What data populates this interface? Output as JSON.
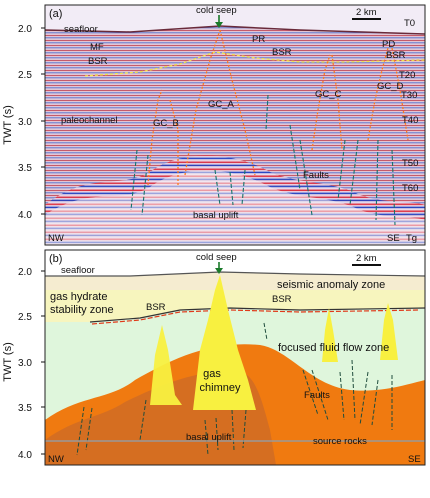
{
  "panel_a": {
    "label": "(a)",
    "top_label": "cold seep",
    "scale": "2 km",
    "labels": {
      "seafloor": "seafloor",
      "mf": "MF",
      "bsr_left": "BSR",
      "pr": "PR",
      "bsr_mid": "BSR",
      "pd": "PD",
      "bsr_right": "BSR",
      "paleochannel": "paleochannel",
      "gc_b": "GC_B",
      "gc_a": "GC_A",
      "gc_c": "GC_C",
      "gc_d": "GC_D",
      "faults": "Faults",
      "basal_uplift": "basal uplift",
      "nw": "NW",
      "se": "SE"
    },
    "horizons": [
      "T0",
      "T20",
      "T30",
      "T40",
      "T50",
      "T60",
      "Tg"
    ]
  },
  "panel_b": {
    "label": "(b)",
    "top_label": "cold seep",
    "scale": "2 km",
    "labels": {
      "seafloor": "seafloor",
      "seismic_anomaly_zone": "seismic anomaly zone",
      "ghsz_line1": "gas hydrate",
      "ghsz_line2": "stability zone",
      "bsr_left": "BSR",
      "bsr_right": "BSR",
      "gas_chimney_line1": "gas",
      "gas_chimney_line2": "chimney",
      "focused_flow": "focused fluid flow zone",
      "faults": "Faults",
      "basal_uplift": "basal uplift",
      "source_rocks": "source rocks",
      "nw": "NW",
      "se": "SE"
    }
  },
  "y_axis": {
    "title": "TWT (s)",
    "ticks": [
      "2.0",
      "2.5",
      "3.0",
      "3.5",
      "4.0"
    ]
  }
}
